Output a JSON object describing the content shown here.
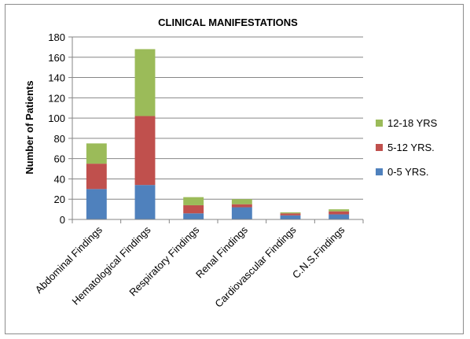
{
  "chart_data": {
    "type": "bar",
    "stacked": true,
    "title": "CLINICAL MANIFESTATIONS",
    "xlabel": "",
    "ylabel": "Number of Patients",
    "ylim": [
      0,
      180
    ],
    "yticks": [
      0,
      20,
      40,
      60,
      80,
      100,
      120,
      140,
      160,
      180
    ],
    "grid": true,
    "legend_position": "right",
    "categories": [
      "Abdominal Findings",
      "Hematological Findings",
      "Respiratory Findings",
      "Renal Findings",
      "Cardiovascular Findings",
      "C.N.S.Findings"
    ],
    "series": [
      {
        "name": "0-5 YRS.",
        "color": "#4f81bd",
        "values": [
          30,
          34,
          6,
          12,
          4,
          5
        ]
      },
      {
        "name": "5-12 YRS.",
        "color": "#c0504d",
        "values": [
          25,
          68,
          8,
          3,
          2,
          3
        ]
      },
      {
        "name": "12-18 YRS",
        "color": "#9bbb59",
        "values": [
          20,
          66,
          8,
          5,
          1,
          2
        ]
      }
    ],
    "legend_order": [
      "12-18 YRS",
      "5-12 YRS.",
      "0-5 YRS."
    ]
  }
}
